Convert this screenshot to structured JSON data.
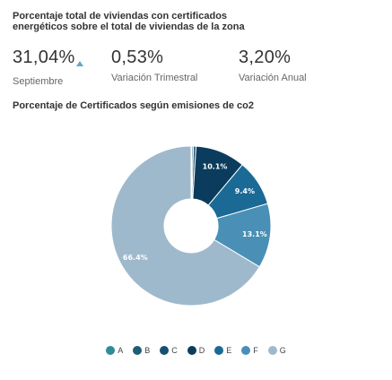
{
  "kpi_section": {
    "title": "Porcentaje total de viviendas con certificados energéticos sobre el total de viviendas de la zona",
    "kpis": [
      {
        "value": "31,04%",
        "label": "Septiembre",
        "trend": "up",
        "trend_color": "#5fa8c6"
      },
      {
        "value": "0,53%",
        "label": "Variación Trimestral"
      },
      {
        "value": "3,20%",
        "label": "Variación Anual"
      }
    ]
  },
  "chart_data": {
    "type": "pie",
    "title": "Porcentaje de Certificados según emisiones de co2",
    "categories": [
      "A",
      "B",
      "C",
      "D",
      "E",
      "F",
      "G"
    ],
    "values": [
      0.2,
      0.3,
      0.5,
      10.1,
      9.4,
      13.1,
      66.4
    ],
    "data_labels": [
      "",
      "",
      "",
      "10.1%",
      "9.4%",
      "13.1%",
      "66.4%"
    ],
    "colors": [
      "#2e8b9a",
      "#1f5d73",
      "#174f6e",
      "#0b3c5d",
      "#1b6a96",
      "#4a8fb5",
      "#9fb9cc"
    ],
    "donut": true,
    "legend_position": "bottom"
  }
}
